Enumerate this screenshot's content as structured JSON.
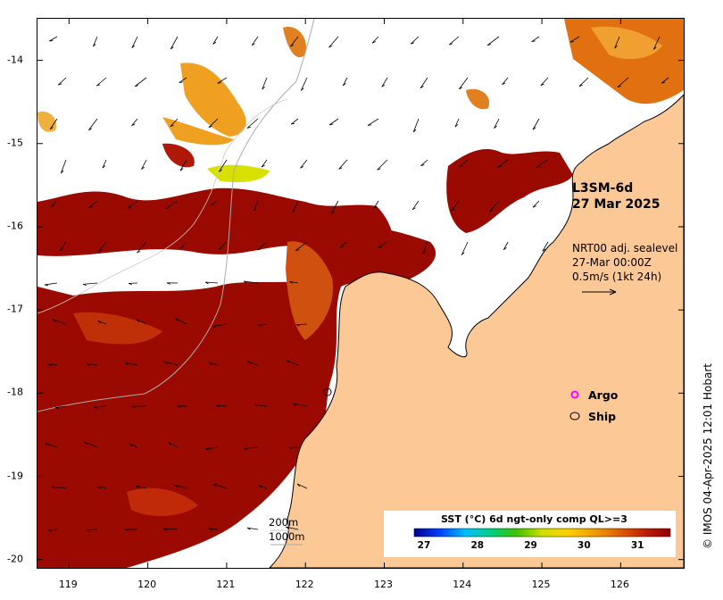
{
  "map": {
    "product_title": "L3SM-6d",
    "product_date": "27 Mar 2025",
    "current_line1": "NRT00 adj. sealevel",
    "current_line2": "27-Mar 00:00Z",
    "current_line3": "0.5m/s (1kt 24h)",
    "legend": {
      "argo_label": "Argo",
      "ship_label": "Ship",
      "argo_color": "#ff00ff"
    },
    "scale": {
      "contour_200": "200m",
      "contour_1000": "1000m"
    },
    "credit": "© IMOS 04-Apr-2025 12:01 Hobart",
    "x_ticks": [
      "119",
      "120",
      "121",
      "122",
      "123",
      "124",
      "125",
      "126"
    ],
    "y_ticks": [
      "-14",
      "-15",
      "-16",
      "-17",
      "-18",
      "-19",
      "-20"
    ],
    "lon_range": [
      118.6,
      126.8
    ],
    "lat_range": [
      -20.1,
      -13.5
    ],
    "colors": {
      "land": "#fcc896",
      "no_data": "#ffffff",
      "sst_dominant": "#9b0a00"
    }
  },
  "colorbar": {
    "title": "SST (°C) 6d ngt-only comp QL>=3",
    "ticks": [
      "27",
      "28",
      "29",
      "30",
      "31"
    ],
    "range": [
      26.8,
      31.6
    ],
    "colors": [
      "#00008f",
      "#0040ff",
      "#00c0ff",
      "#00d080",
      "#40c000",
      "#d0e000",
      "#ffd000",
      "#f0a000",
      "#e06000",
      "#c02000",
      "#900000"
    ]
  }
}
